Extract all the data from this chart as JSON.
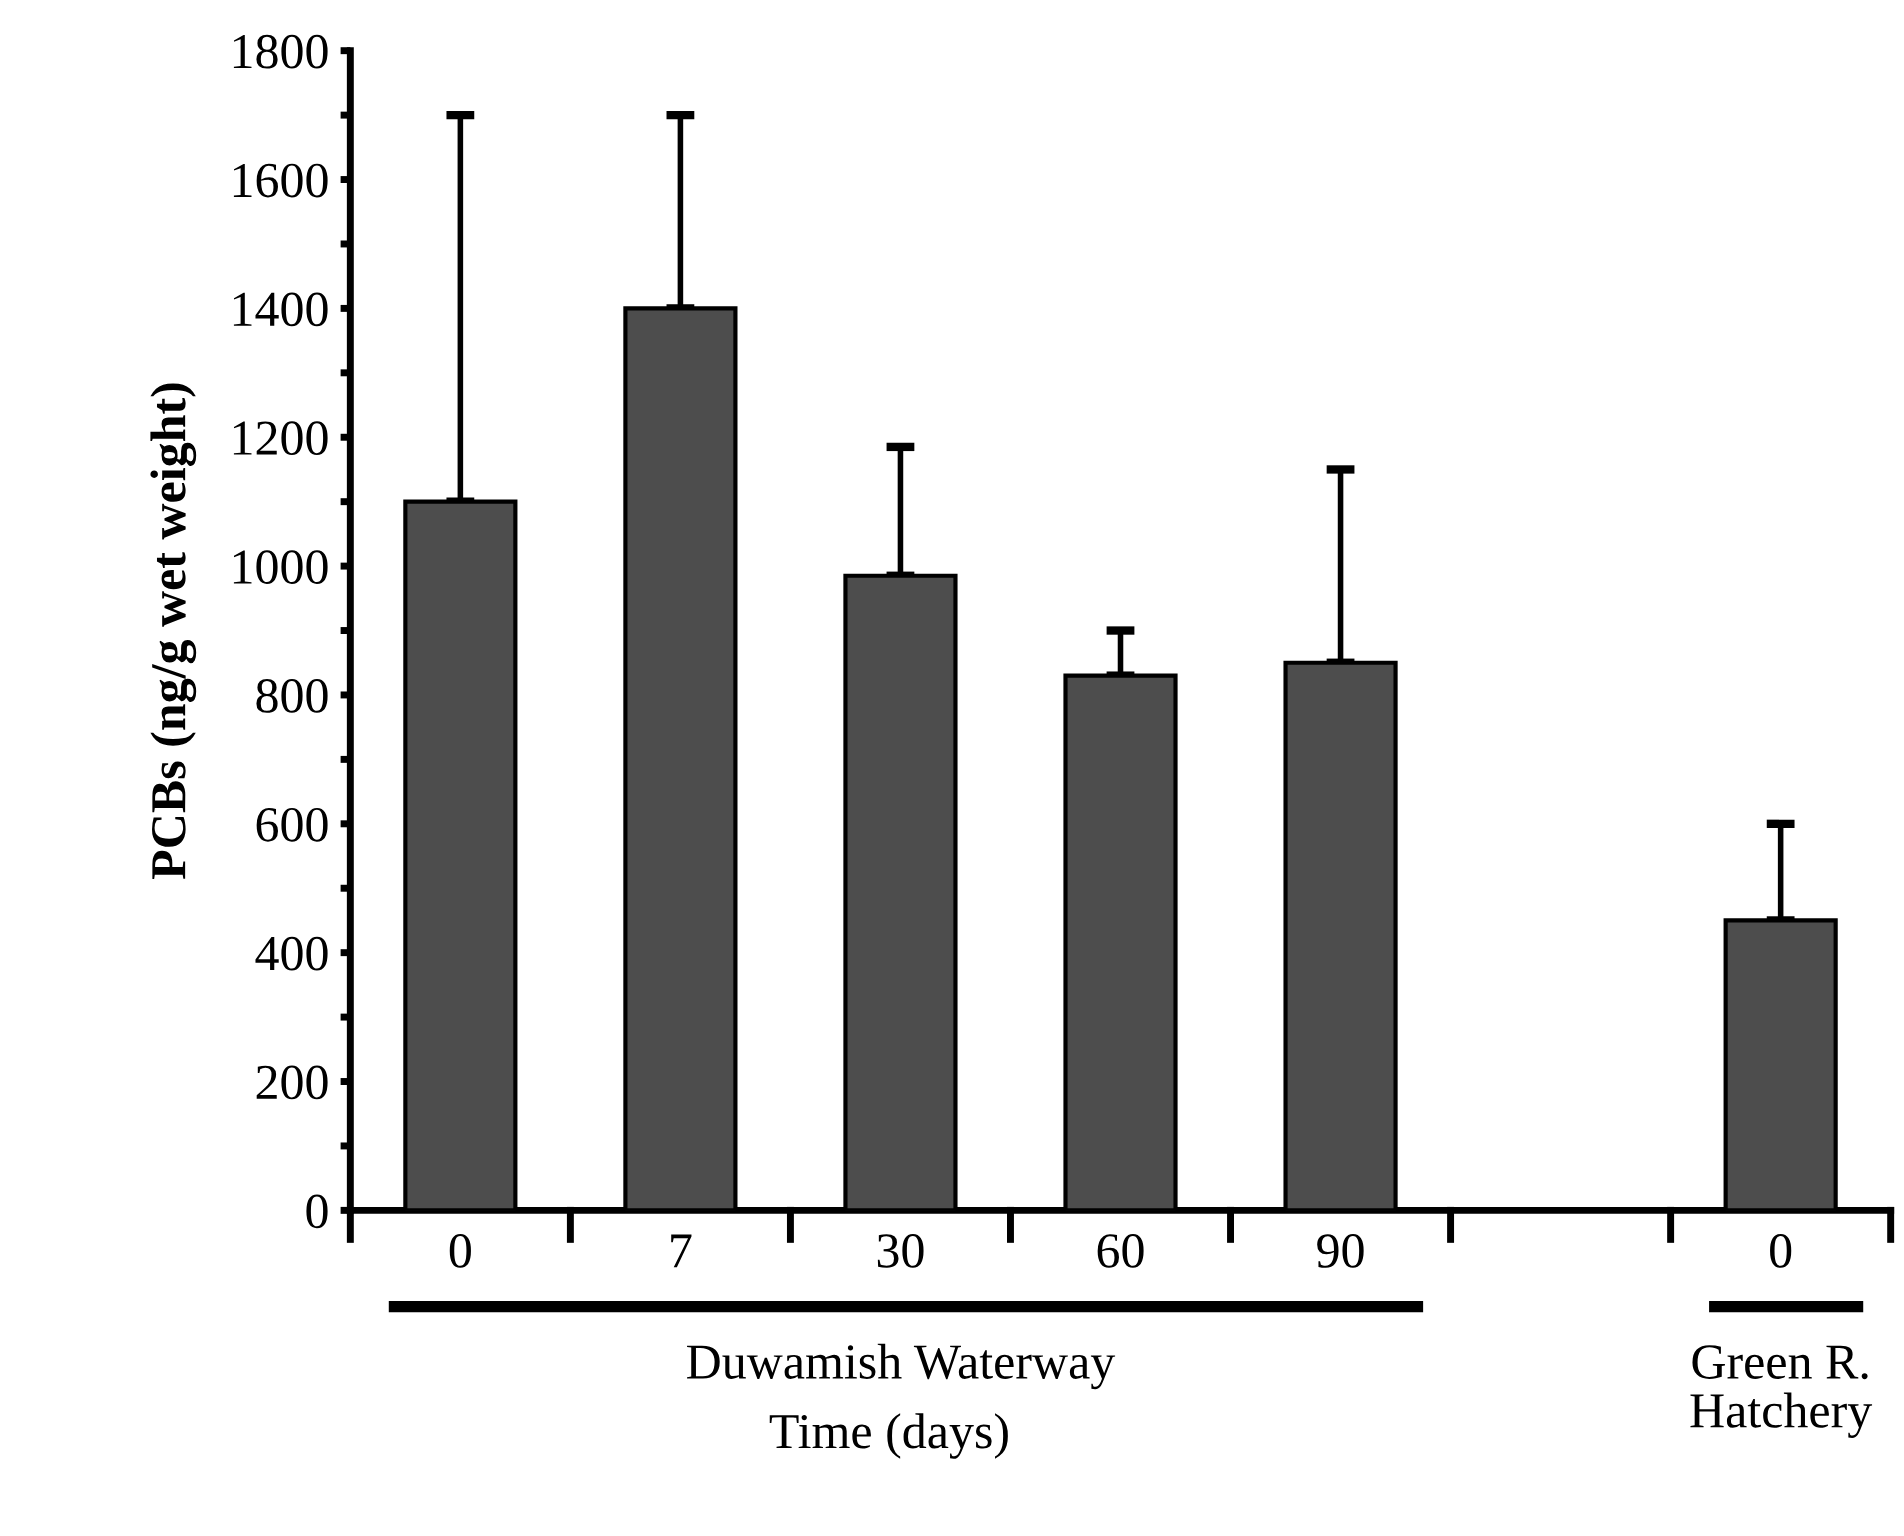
{
  "chart_data": {
    "type": "bar",
    "xlabel": "Time (days)",
    "ylabel": "PCBs (ng/g wet weight)",
    "categories": [
      "0",
      "7",
      "30",
      "60",
      "90",
      null,
      "0"
    ],
    "values": [
      1100,
      1400,
      985,
      830,
      850,
      null,
      450
    ],
    "errors": [
      [
        1100,
        1700
      ],
      [
        1400,
        1700
      ],
      [
        985,
        1185
      ],
      [
        830,
        900
      ],
      [
        850,
        1150
      ],
      null,
      [
        450,
        600
      ]
    ],
    "color": "#4d4d4d",
    "ylim": [
      0,
      1800
    ],
    "yticks": [
      0,
      {
        "value": 100,
        "label": null
      },
      200,
      {
        "value": 300,
        "label": null
      },
      400,
      {
        "value": 500,
        "label": null
      },
      600,
      {
        "value": 700,
        "label": null
      },
      800,
      {
        "value": 900,
        "label": null
      },
      1000,
      {
        "value": 1100,
        "label": null
      },
      1200,
      {
        "value": 1300,
        "label": null
      },
      1400,
      {
        "value": 1500,
        "label": null
      },
      1600,
      {
        "value": 1700,
        "label": null
      },
      1800
    ],
    "grid": false,
    "legend": false,
    "annotations": [
      "Duwamish Waterway",
      "Green R.\nHatchery"
    ]
  }
}
